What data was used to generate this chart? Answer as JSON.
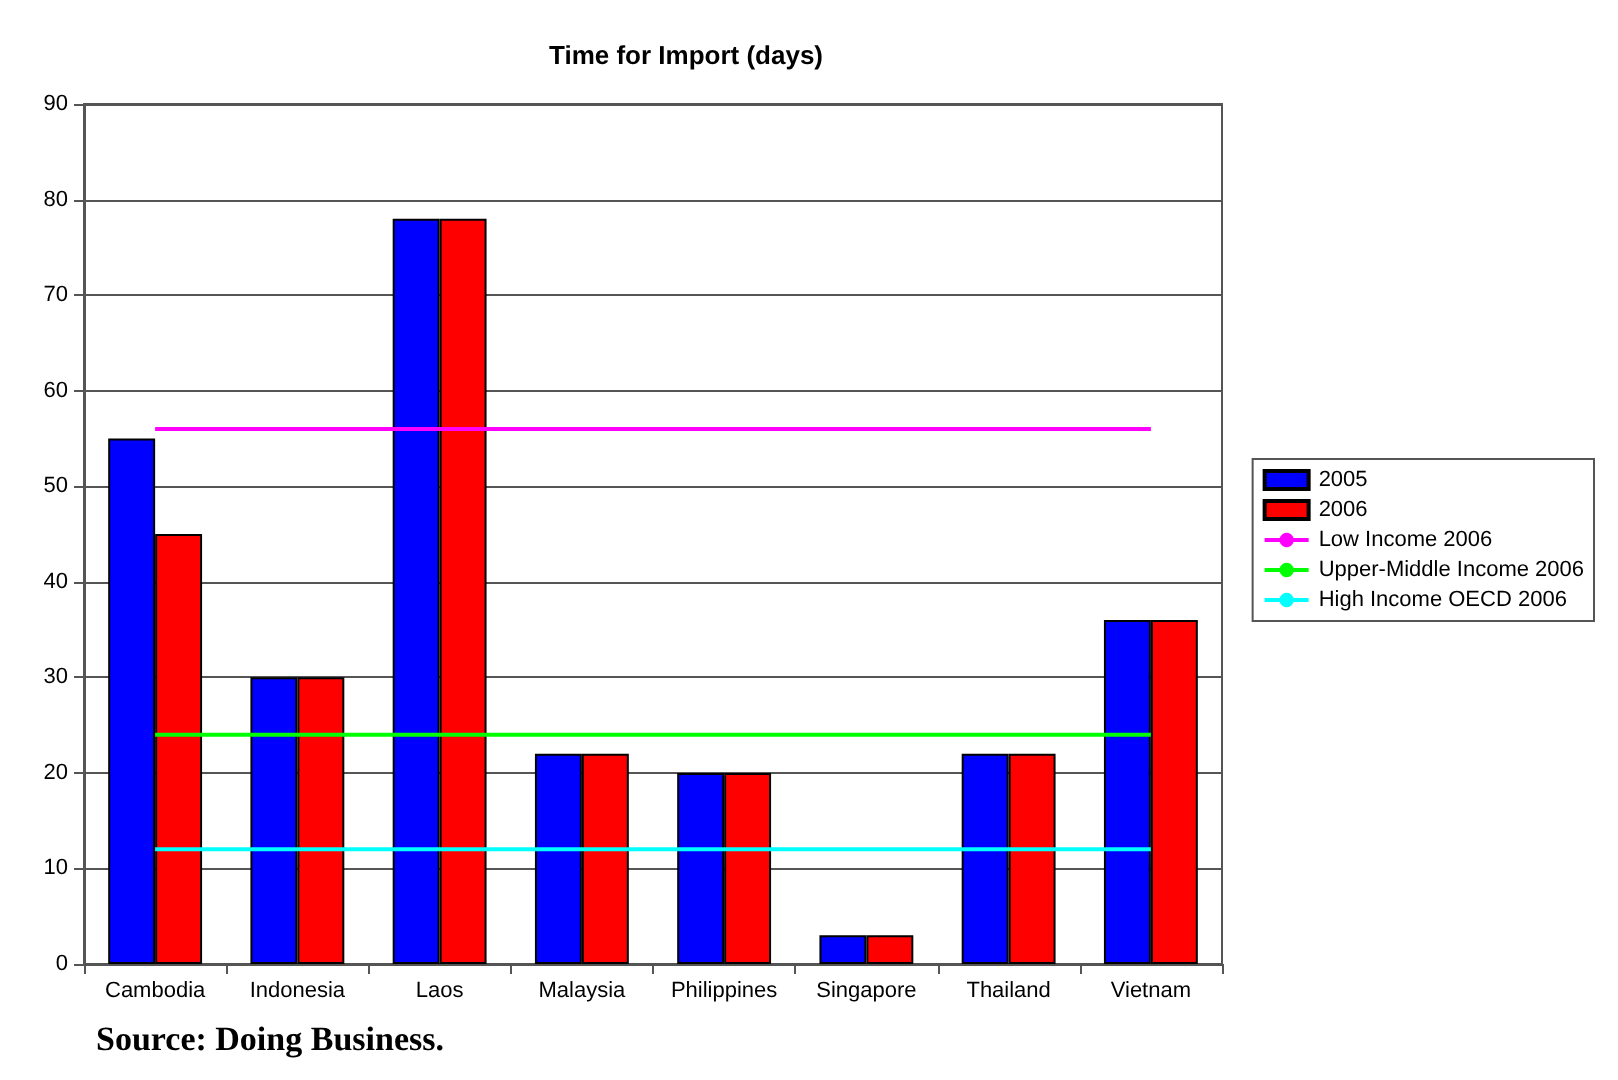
{
  "chart_data": {
    "type": "bar",
    "title": "Time for Import (days)",
    "categories": [
      "Cambodia",
      "Indonesia",
      "Laos",
      "Malaysia",
      "Philippines",
      "Singapore",
      "Thailand",
      "Vietnam"
    ],
    "series": [
      {
        "name": "2005",
        "color": "#0000ff",
        "values": [
          55,
          30,
          78,
          22,
          20,
          3,
          22,
          36
        ]
      },
      {
        "name": "2006",
        "color": "#ff0000",
        "values": [
          45,
          30,
          78,
          22,
          20,
          3,
          22,
          36
        ]
      },
      {
        "name": "Low Income 2006",
        "type": "line",
        "color": "#ff00ff",
        "values": [
          56,
          56,
          56,
          56,
          56,
          56,
          56,
          56
        ]
      },
      {
        "name": "Upper-Middle Income 2006",
        "type": "line",
        "color": "#00ff00",
        "values": [
          24,
          24,
          24,
          24,
          24,
          24,
          24,
          24
        ]
      },
      {
        "name": "High Income OECD 2006",
        "type": "line",
        "color": "#00ffff",
        "values": [
          12,
          12,
          12,
          12,
          12,
          12,
          12,
          12
        ]
      }
    ],
    "ylim": [
      0,
      90
    ],
    "yticks": [
      0,
      10,
      20,
      30,
      40,
      50,
      60,
      70,
      80,
      90
    ],
    "grid": "y",
    "legend": "right",
    "marker": "none",
    "line_style": "solid",
    "annotations": [
      "Source: Doing Business."
    ]
  }
}
